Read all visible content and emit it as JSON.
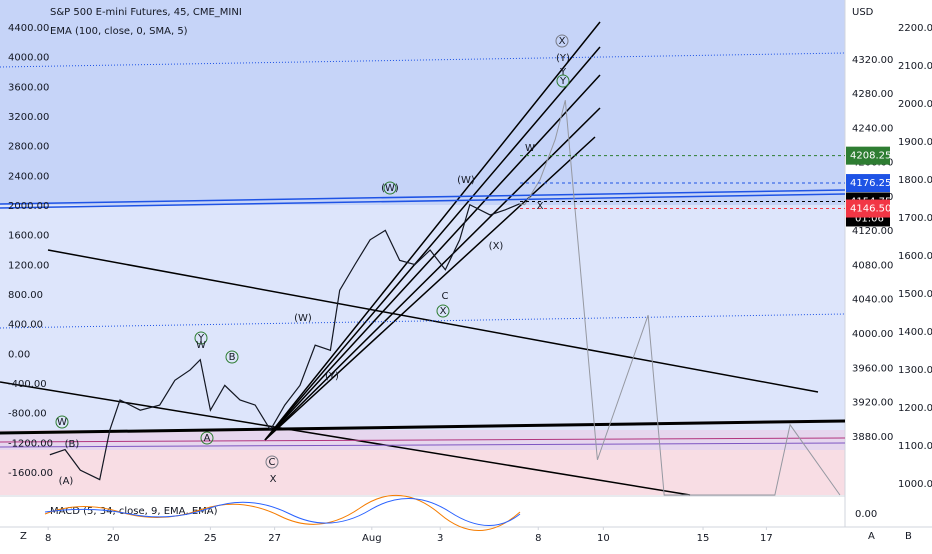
{
  "chart_data": {
    "type": "line",
    "title": "S&P 500 E-mini Futures, 45, CME_MINI",
    "subtitle": "EMA (100, close, 0, SMA, 5)",
    "currency": "USD",
    "indicator": "MACD (5, 34, close, 9, EMA, EMA)",
    "indicator_tick": {
      "value": 0,
      "label": "0.00"
    },
    "xlim": [
      0,
      100
    ],
    "xticks": [
      {
        "value": 5.7,
        "label": "8"
      },
      {
        "value": 13.4,
        "label": "20"
      },
      {
        "value": 24.9,
        "label": "25"
      },
      {
        "value": 32.5,
        "label": "27"
      },
      {
        "value": 44,
        "label": "Aug"
      },
      {
        "value": 52.1,
        "label": "3"
      },
      {
        "value": 63.7,
        "label": "8"
      },
      {
        "value": 71.4,
        "label": "10"
      },
      {
        "value": 83.2,
        "label": "15"
      },
      {
        "value": 90.7,
        "label": "17"
      }
    ],
    "ylim": [
      3812,
      4390
    ],
    "yticks": [
      {
        "value": 4320,
        "label": "4320.00"
      },
      {
        "value": 4280,
        "label": "4280.00"
      },
      {
        "value": 4240,
        "label": "4240.00"
      },
      {
        "value": 4200,
        "label": "4200.00"
      },
      {
        "value": 4160,
        "label": "4160.00"
      },
      {
        "value": 4120,
        "label": "4120.00"
      },
      {
        "value": 4080,
        "label": "4080.00"
      },
      {
        "value": 4040,
        "label": "4040.00"
      },
      {
        "value": 4000,
        "label": "4000.00"
      },
      {
        "value": 3960,
        "label": "3960.00"
      },
      {
        "value": 3920,
        "label": "3920.00"
      },
      {
        "value": 3880,
        "label": "3880.00"
      }
    ],
    "y_left_lim": [
      -1896,
      4777
    ],
    "y_left_ticks": [
      {
        "value": 4400,
        "label": "4400.00"
      },
      {
        "value": 4000,
        "label": "4000.00"
      },
      {
        "value": 3600,
        "label": "3600.00"
      },
      {
        "value": 3200,
        "label": "3200.00"
      },
      {
        "value": 2800,
        "label": "2800.00"
      },
      {
        "value": 2400,
        "label": "2400.00"
      },
      {
        "value": 2000,
        "label": "2000.00"
      },
      {
        "value": 1600,
        "label": "1600.00"
      },
      {
        "value": 1200,
        "label": "1200.00"
      },
      {
        "value": 800,
        "label": "800.00"
      },
      {
        "value": 400,
        "label": "400.00"
      },
      {
        "value": 0,
        "label": "0.00"
      },
      {
        "value": -400,
        "label": "-400.00"
      },
      {
        "value": -800,
        "label": "-800.00"
      },
      {
        "value": -1200,
        "label": "-1200.00"
      },
      {
        "value": -1600,
        "label": "-1600.00"
      }
    ],
    "y2lim": [
      971,
      2274
    ],
    "y2ticks": [
      {
        "value": 2200,
        "label": "2200.00"
      },
      {
        "value": 2100,
        "label": "2100.00"
      },
      {
        "value": 2000,
        "label": "2000.00"
      },
      {
        "value": 1900,
        "label": "1900.00"
      },
      {
        "value": 1800,
        "label": "1800.00"
      },
      {
        "value": 1700,
        "label": "1700.00"
      },
      {
        "value": 1600,
        "label": "1600.00"
      },
      {
        "value": 1500,
        "label": "1500.00"
      },
      {
        "value": 1400,
        "label": "1400.00"
      },
      {
        "value": 1300,
        "label": "1300.00"
      },
      {
        "value": 1200,
        "label": "1200.00"
      },
      {
        "value": 1100,
        "label": "1100.00"
      },
      {
        "value": 1000,
        "label": "1000.00"
      }
    ],
    "series": [
      {
        "color": "#131722",
        "x": [
          5.9,
          7.7,
          9.5,
          11.8,
          13,
          14.2,
          16.6,
          18.9,
          20.7,
          22.5,
          23.7,
          24.9,
          26.6,
          28.4,
          30.2,
          32,
          33.7,
          35.5,
          37.3,
          39.1,
          40.2,
          42,
          43.8,
          45.6,
          47.3,
          49.1,
          50.9,
          52.7,
          54.4,
          55.6,
          58,
          59.8,
          61.5
        ],
        "values": [
          3859,
          3865,
          3841,
          3830,
          3888,
          3923,
          3911,
          3917,
          3946,
          3958,
          3970,
          3911,
          3940,
          3923,
          3917,
          3888,
          3917,
          3940,
          3987,
          3981,
          4051,
          4081,
          4110,
          4121,
          4086,
          4081,
          4098,
          4075,
          4110,
          4151,
          4139,
          4145,
          4152
        ]
      },
      {
        "color": "#9598a1",
        "x": [
          61.5,
          62.1,
          63.9,
          65.7,
          66.9,
          70.7,
          76.7,
          78.6,
          91.7,
          93.5,
          99.4
        ],
        "values": [
          4152,
          4151,
          4180,
          4227,
          4273,
          3853,
          4022,
          3812,
          3812,
          3894,
          3812
        ]
      }
    ],
    "price_tags": [
      {
        "value": 4208.25,
        "color": "#2e7d32"
      },
      {
        "value": 4176.25,
        "color": "#1e53e5"
      },
      {
        "value": 4154.75,
        "color": "#000000",
        "countdown": "01:06"
      },
      {
        "value": 4146.5,
        "label": "4146.50",
        "color": "#f23645"
      }
    ],
    "annotations": [
      "(W)",
      "(W)",
      "W",
      "X",
      "(X)",
      "X",
      "C",
      "(W)",
      "(Y)",
      "Y",
      "W",
      "B",
      "A",
      "C",
      "X",
      "W",
      "(A)",
      "(B)",
      "X",
      "Y",
      "Y",
      "(Y)"
    ],
    "toolbar": [
      "Z",
      "A",
      "B"
    ]
  }
}
